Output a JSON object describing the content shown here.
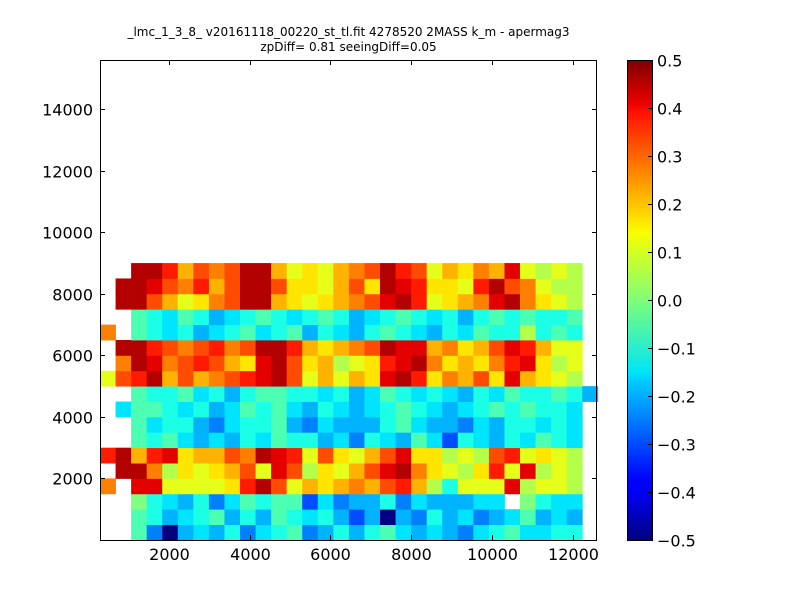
{
  "chart_data": {
    "type": "heatmap",
    "title": "_lmc_1_3_8_ v20161118_00220_st_tl.fit 4278520 2MASS k_m - apermag3",
    "subtitle": "zpDiff= 0.81 seeingDiff=0.05",
    "xlabel": "",
    "ylabel": "",
    "xlim": [
      300,
      12600
    ],
    "ylim": [
      0,
      15600
    ],
    "x_ticks": [
      2000,
      4000,
      6000,
      8000,
      10000,
      12000
    ],
    "y_ticks": [
      2000,
      4000,
      6000,
      8000,
      10000,
      12000,
      14000
    ],
    "colormap": "jet",
    "clim": [
      -0.5,
      0.5
    ],
    "colorbar_ticks": [
      0.5,
      0.4,
      0.3,
      0.2,
      0.1,
      0.0,
      -0.1,
      -0.2,
      -0.3,
      -0.4,
      -0.5
    ],
    "colorbar_tick_labels": [
      "0.5",
      "0.4",
      "0.3",
      "0.2",
      "0.1",
      "0.0",
      "−0.1",
      "−0.2",
      "−0.3",
      "−0.4",
      "−0.5"
    ],
    "grid": false,
    "cell_size": [
      385,
      500
    ],
    "x0": 300,
    "y0": 0,
    "note_rows": "rows listed bottom (y=0) to top; null = no data",
    "z": [
      [
        null,
        null,
        -0.05,
        -0.25,
        -0.5,
        -0.2,
        -0.15,
        -0.2,
        -0.1,
        -0.25,
        -0.15,
        -0.1,
        -0.05,
        -0.25,
        -0.2,
        -0.1,
        -0.2,
        -0.1,
        -0.05,
        -0.15,
        -0.2,
        -0.15,
        -0.2,
        -0.25,
        -0.15,
        -0.1,
        -0.05,
        -0.15,
        -0.15,
        -0.1,
        -0.1,
        null
      ],
      [
        null,
        null,
        -0.05,
        -0.1,
        -0.2,
        -0.15,
        -0.1,
        -0.05,
        -0.2,
        -0.1,
        -0.2,
        -0.05,
        -0.1,
        -0.15,
        -0.1,
        -0.2,
        -0.3,
        -0.2,
        -0.5,
        -0.2,
        -0.25,
        -0.1,
        -0.2,
        -0.15,
        -0.25,
        -0.2,
        -0.15,
        -0.05,
        -0.2,
        -0.15,
        -0.2,
        null
      ],
      [
        null,
        null,
        0.0,
        -0.1,
        -0.15,
        -0.2,
        -0.1,
        -0.25,
        -0.15,
        -0.05,
        -0.1,
        -0.05,
        -0.05,
        -0.3,
        -0.15,
        -0.25,
        -0.2,
        -0.2,
        -0.1,
        -0.25,
        -0.15,
        -0.2,
        -0.2,
        -0.2,
        -0.15,
        -0.15,
        null,
        0.0,
        -0.1,
        -0.15,
        -0.15,
        null
      ],
      [
        0.25,
        null,
        0.4,
        0.4,
        0.1,
        0.1,
        0.1,
        0.1,
        0.15,
        0.35,
        0.45,
        0.3,
        0.1,
        0.2,
        0.15,
        0.2,
        0.25,
        0.2,
        0.3,
        0.35,
        0.2,
        0.05,
        -0.1,
        0.1,
        0.1,
        0.1,
        0.4,
        0.05,
        0.1,
        0.1,
        0.05,
        null
      ],
      [
        null,
        0.45,
        0.45,
        0.25,
        0.05,
        0.15,
        0.1,
        0.15,
        0.2,
        0.3,
        0.1,
        0.4,
        0.3,
        0.05,
        0.15,
        0.1,
        0.2,
        0.3,
        0.4,
        0.45,
        0.25,
        0.15,
        0.1,
        0.05,
        0.15,
        0.35,
        0.1,
        0.4,
        0.05,
        0.1,
        0.05,
        null
      ],
      [
        0.35,
        0.45,
        0.2,
        0.35,
        0.4,
        0.15,
        0.2,
        0.2,
        0.3,
        0.25,
        0.45,
        0.4,
        0.35,
        0.1,
        0.3,
        0.15,
        0.1,
        0.2,
        0.3,
        0.4,
        0.15,
        0.15,
        0.05,
        0.1,
        0.05,
        0.3,
        0.35,
        0.1,
        0.15,
        0.1,
        0.05,
        null
      ],
      [
        null,
        null,
        -0.05,
        -0.1,
        -0.05,
        -0.15,
        -0.2,
        -0.15,
        -0.2,
        -0.1,
        -0.15,
        -0.05,
        -0.1,
        -0.1,
        -0.2,
        -0.15,
        -0.25,
        -0.1,
        -0.15,
        -0.2,
        -0.05,
        -0.15,
        -0.3,
        -0.1,
        -0.15,
        -0.2,
        -0.1,
        -0.15,
        -0.05,
        -0.1,
        -0.15,
        null
      ],
      [
        null,
        null,
        -0.05,
        -0.15,
        -0.1,
        -0.1,
        -0.2,
        -0.25,
        -0.15,
        -0.1,
        -0.1,
        -0.05,
        -0.2,
        -0.25,
        -0.15,
        -0.2,
        -0.2,
        -0.2,
        -0.1,
        -0.05,
        -0.15,
        -0.2,
        -0.2,
        -0.25,
        -0.15,
        -0.2,
        -0.1,
        -0.1,
        -0.15,
        -0.1,
        -0.15,
        null
      ],
      [
        null,
        -0.15,
        -0.05,
        -0.05,
        -0.1,
        -0.15,
        -0.1,
        -0.2,
        -0.15,
        -0.05,
        -0.1,
        -0.05,
        -0.15,
        -0.2,
        -0.1,
        -0.15,
        -0.2,
        -0.15,
        -0.1,
        -0.05,
        -0.1,
        -0.15,
        -0.2,
        -0.15,
        -0.1,
        -0.05,
        -0.1,
        -0.05,
        -0.1,
        -0.1,
        -0.15,
        null
      ],
      [
        null,
        null,
        -0.05,
        -0.1,
        -0.1,
        -0.05,
        -0.15,
        -0.1,
        -0.2,
        -0.1,
        -0.05,
        -0.05,
        -0.1,
        -0.1,
        -0.15,
        -0.1,
        -0.2,
        -0.15,
        -0.05,
        -0.1,
        -0.15,
        -0.1,
        -0.15,
        -0.2,
        -0.1,
        -0.15,
        -0.05,
        -0.1,
        -0.1,
        -0.05,
        -0.1,
        -0.2
      ],
      [
        0.1,
        0.3,
        0.35,
        0.45,
        0.2,
        0.3,
        0.2,
        0.25,
        0.3,
        0.35,
        0.4,
        0.45,
        0.3,
        0.1,
        0.2,
        0.1,
        0.2,
        0.15,
        0.4,
        0.45,
        0.35,
        0.15,
        0.25,
        0.2,
        0.3,
        0.15,
        0.4,
        0.2,
        0.15,
        0.1,
        0.05,
        null
      ],
      [
        null,
        0.25,
        0.45,
        0.4,
        0.25,
        0.3,
        0.35,
        0.3,
        0.2,
        0.15,
        0.4,
        0.45,
        0.3,
        0.15,
        0.2,
        0.05,
        0.1,
        0.15,
        0.35,
        0.4,
        0.45,
        0.25,
        0.15,
        0.2,
        0.15,
        0.25,
        0.35,
        0.4,
        0.15,
        0.05,
        0.1,
        null
      ],
      [
        null,
        0.45,
        0.45,
        0.35,
        0.3,
        0.25,
        0.3,
        0.35,
        0.25,
        0.3,
        0.45,
        0.45,
        0.35,
        0.2,
        0.15,
        0.2,
        0.25,
        0.3,
        0.45,
        0.4,
        0.4,
        0.2,
        0.25,
        0.15,
        0.2,
        0.3,
        0.4,
        0.35,
        0.2,
        0.1,
        0.1,
        null
      ],
      [
        0.25,
        null,
        -0.05,
        -0.1,
        -0.15,
        -0.1,
        -0.2,
        -0.15,
        -0.1,
        -0.05,
        -0.15,
        -0.1,
        -0.05,
        -0.2,
        -0.1,
        -0.15,
        -0.2,
        -0.1,
        -0.05,
        -0.1,
        -0.15,
        -0.2,
        -0.1,
        -0.15,
        -0.05,
        -0.1,
        -0.1,
        0.05,
        -0.1,
        -0.05,
        -0.1,
        null
      ],
      [
        null,
        null,
        -0.05,
        -0.1,
        -0.15,
        -0.05,
        -0.1,
        -0.2,
        -0.15,
        -0.1,
        -0.05,
        -0.1,
        -0.15,
        -0.1,
        -0.05,
        -0.1,
        -0.2,
        -0.15,
        -0.1,
        -0.05,
        -0.1,
        -0.15,
        -0.1,
        -0.2,
        -0.1,
        -0.05,
        -0.1,
        -0.05,
        -0.1,
        -0.1,
        -0.05,
        null
      ],
      [
        null,
        0.45,
        0.45,
        0.3,
        0.2,
        0.1,
        0.15,
        0.25,
        0.3,
        0.45,
        0.45,
        0.2,
        0.15,
        0.1,
        0.15,
        0.2,
        0.25,
        0.3,
        0.4,
        0.45,
        0.35,
        0.1,
        0.15,
        0.2,
        0.25,
        0.4,
        0.45,
        0.25,
        0.15,
        0.1,
        0.05,
        null
      ],
      [
        null,
        0.45,
        0.45,
        0.4,
        0.3,
        0.25,
        0.35,
        0.2,
        0.3,
        0.45,
        0.45,
        0.3,
        0.15,
        0.15,
        0.1,
        0.2,
        0.3,
        0.15,
        0.45,
        0.4,
        0.35,
        0.15,
        0.15,
        0.1,
        0.35,
        0.45,
        0.3,
        0.25,
        0.1,
        0.05,
        0.05,
        null
      ],
      [
        null,
        null,
        0.45,
        0.45,
        0.35,
        0.2,
        0.3,
        0.25,
        0.3,
        0.45,
        0.45,
        0.2,
        0.1,
        0.15,
        0.1,
        0.2,
        0.25,
        0.3,
        0.45,
        0.35,
        0.3,
        0.1,
        0.2,
        0.15,
        0.25,
        0.2,
        0.4,
        0.1,
        0.05,
        0.1,
        0.05,
        null
      ]
    ]
  }
}
